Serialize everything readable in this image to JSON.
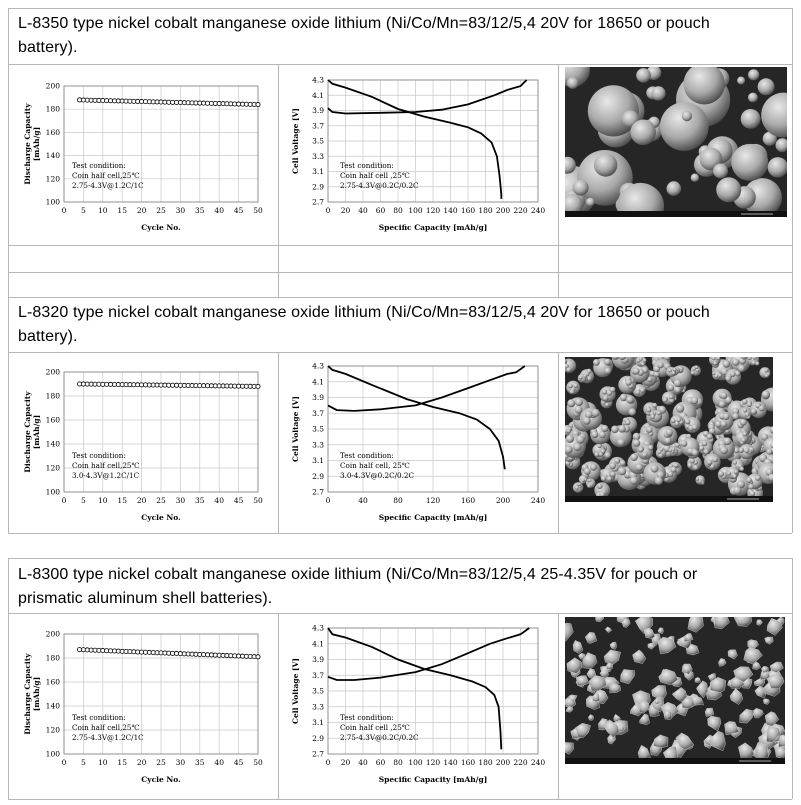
{
  "products": [
    {
      "title": "L-8350 type nickel cobalt manganese oxide lithium (Ni/Co/Mn=83/12/5,4 20V for 18650 or pouch battery).",
      "title_lines": [
        "L-8350 type nickel cobalt manganese oxide lithium (Ni/Co/Mn=83/12/5,4 20V for 18650 or pouch",
        "battery)."
      ],
      "cycle_chart": {
        "type": "scatter",
        "xlabel": "Cycle No.",
        "ylabel": "Discharge Capacity [mAh/g]",
        "xlim": [
          0,
          50
        ],
        "ylim": [
          100,
          200
        ],
        "x_ticks": [
          "0",
          "5",
          "10",
          "15",
          "20",
          "25",
          "30",
          "35",
          "40",
          "45",
          "50"
        ],
        "y_ticks": [
          "100",
          "120",
          "140",
          "160",
          "180",
          "200"
        ],
        "series": [
          {
            "x_start": 4,
            "x_end": 50,
            "y_start": 188,
            "y_end": 184
          }
        ],
        "note_lines": [
          "Test condition:",
          "Coin half cell,25℃",
          "2.75-4.3V@1.2C/1C"
        ]
      },
      "voltage_chart": {
        "type": "line",
        "xlabel": "Specific Capacity [mAh/g]",
        "ylabel": "Cell Voltage [V]",
        "xlim": [
          0,
          240
        ],
        "ylim": [
          2.7,
          4.3
        ],
        "x_ticks": [
          "0",
          "20",
          "40",
          "60",
          "80",
          "100",
          "120",
          "140",
          "160",
          "180",
          "200",
          "220",
          "240"
        ],
        "y_ticks": [
          "2.7",
          "2.9",
          "3.1",
          "3.3",
          "3.5",
          "3.7",
          "3.9",
          "4.1",
          "4.3"
        ],
        "charge": [
          [
            0,
            3.93
          ],
          [
            5,
            3.88
          ],
          [
            20,
            3.86
          ],
          [
            60,
            3.87
          ],
          [
            100,
            3.88
          ],
          [
            130,
            3.91
          ],
          [
            160,
            3.98
          ],
          [
            190,
            4.1
          ],
          [
            205,
            4.17
          ],
          [
            220,
            4.22
          ],
          [
            227,
            4.3
          ]
        ],
        "discharge": [
          [
            0,
            4.3
          ],
          [
            5,
            4.25
          ],
          [
            20,
            4.2
          ],
          [
            50,
            4.08
          ],
          [
            80,
            3.92
          ],
          [
            110,
            3.82
          ],
          [
            140,
            3.74
          ],
          [
            160,
            3.68
          ],
          [
            175,
            3.6
          ],
          [
            187,
            3.48
          ],
          [
            193,
            3.3
          ],
          [
            196,
            3.05
          ],
          [
            198,
            2.8
          ],
          [
            198,
            2.74
          ]
        ],
        "note_lines": [
          "Test condition:",
          "Coin half cell ,25℃",
          "2.75-4.3V@0.2C/0.2C"
        ]
      },
      "sem": {
        "caption": "",
        "type": "spheres"
      }
    },
    {
      "title": "L-8320 type nickel cobalt manganese oxide lithium (Ni/Co/Mn=83/12/5,4 20V for 18650 or pouch battery).",
      "title_lines": [
        "L-8320 type nickel cobalt manganese oxide lithium (Ni/Co/Mn=83/12/5,4 20V for 18650 or pouch",
        "battery)."
      ],
      "cycle_chart": {
        "type": "scatter",
        "xlabel": "Cycle No.",
        "ylabel": "Discharge Capacity [mAh/g]",
        "xlim": [
          0,
          50
        ],
        "ylim": [
          100,
          200
        ],
        "x_ticks": [
          "0",
          "5",
          "10",
          "15",
          "20",
          "25",
          "30",
          "35",
          "40",
          "45",
          "50"
        ],
        "y_ticks": [
          "100",
          "120",
          "140",
          "160",
          "180",
          "200"
        ],
        "series": [
          {
            "x_start": 4,
            "x_end": 50,
            "y_start": 190,
            "y_end": 188
          }
        ],
        "note_lines": [
          "Test condition:",
          "Coin half cell,25℃",
          "3.0-4.3V@1.2C/1C"
        ]
      },
      "voltage_chart": {
        "type": "line",
        "xlabel": "Specific Capacity [mAh/g]",
        "ylabel": "Cell Voltage [V]",
        "xlim": [
          0,
          240
        ],
        "ylim": [
          2.7,
          4.3
        ],
        "x_ticks": [
          "0",
          "40",
          "80",
          "120",
          "160",
          "200",
          "240"
        ],
        "y_ticks": [
          "2.7",
          "2.9",
          "3.1",
          "3.3",
          "3.5",
          "3.7",
          "3.9",
          "4.1",
          "4.3"
        ],
        "charge": [
          [
            0,
            3.8
          ],
          [
            10,
            3.74
          ],
          [
            30,
            3.73
          ],
          [
            60,
            3.75
          ],
          [
            100,
            3.8
          ],
          [
            130,
            3.9
          ],
          [
            160,
            4.02
          ],
          [
            185,
            4.12
          ],
          [
            205,
            4.2
          ],
          [
            215,
            4.22
          ],
          [
            225,
            4.3
          ]
        ],
        "discharge": [
          [
            0,
            4.3
          ],
          [
            5,
            4.25
          ],
          [
            20,
            4.2
          ],
          [
            50,
            4.06
          ],
          [
            90,
            3.88
          ],
          [
            120,
            3.78
          ],
          [
            150,
            3.7
          ],
          [
            170,
            3.62
          ],
          [
            185,
            3.5
          ],
          [
            195,
            3.35
          ],
          [
            200,
            3.15
          ],
          [
            202,
            2.99
          ]
        ],
        "note_lines": [
          "Test condition:",
          "Coin half cell, 25℃",
          "3.0-4.3V@0.2C/0.2C"
        ]
      },
      "sem": {
        "caption": "",
        "type": "clusters"
      }
    },
    {
      "title": "L-8300 type nickel cobalt manganese oxide lithium (Ni/Co/Mn=83/12/5,4 25-4.35V for pouch or prismatic aluminum shell batteries).",
      "title_lines": [
        "L-8300 type nickel cobalt manganese oxide lithium (Ni/Co/Mn=83/12/5,4 25-4.35V for pouch or",
        "prismatic aluminum shell batteries)."
      ],
      "cycle_chart": {
        "type": "scatter",
        "xlabel": "Cycle No.",
        "ylabel": "Discharge Capacity [mAh/g]",
        "xlim": [
          0,
          50
        ],
        "ylim": [
          100,
          200
        ],
        "x_ticks": [
          "0",
          "5",
          "10",
          "15",
          "20",
          "25",
          "30",
          "35",
          "40",
          "45",
          "50"
        ],
        "y_ticks": [
          "100",
          "120",
          "140",
          "160",
          "180",
          "200"
        ],
        "series": [
          {
            "x_start": 4,
            "x_end": 50,
            "y_start": 187,
            "y_end": 181
          }
        ],
        "note_lines": [
          "Test condition:",
          "Coin half cell,25℃",
          "2.75-4.3V@1.2C/1C"
        ]
      },
      "voltage_chart": {
        "type": "line",
        "xlabel": "Specific Capacity [mAh/g]",
        "ylabel": "Cell Voltage [V]",
        "xlim": [
          0,
          240
        ],
        "ylim": [
          2.7,
          4.3
        ],
        "x_ticks": [
          "0",
          "20",
          "40",
          "60",
          "80",
          "100",
          "120",
          "140",
          "160",
          "180",
          "200",
          "220",
          "240"
        ],
        "y_ticks": [
          "2.7",
          "2.9",
          "3.1",
          "3.3",
          "3.5",
          "3.7",
          "3.9",
          "4.1",
          "4.3"
        ],
        "charge": [
          [
            0,
            3.68
          ],
          [
            10,
            3.64
          ],
          [
            30,
            3.64
          ],
          [
            60,
            3.67
          ],
          [
            100,
            3.74
          ],
          [
            130,
            3.84
          ],
          [
            160,
            3.98
          ],
          [
            185,
            4.1
          ],
          [
            205,
            4.17
          ],
          [
            220,
            4.22
          ],
          [
            230,
            4.3
          ]
        ],
        "discharge": [
          [
            0,
            4.3
          ],
          [
            5,
            4.22
          ],
          [
            20,
            4.18
          ],
          [
            50,
            4.06
          ],
          [
            80,
            3.9
          ],
          [
            110,
            3.78
          ],
          [
            140,
            3.7
          ],
          [
            165,
            3.62
          ],
          [
            180,
            3.55
          ],
          [
            190,
            3.45
          ],
          [
            195,
            3.3
          ],
          [
            197,
            3.0
          ],
          [
            198,
            2.76
          ]
        ],
        "note_lines": [
          "Test condition:",
          "Coin half cell ,25℃",
          "2.75-4.3V@0.2C/0.2C"
        ]
      },
      "sem": {
        "caption": "",
        "type": "crystals"
      }
    }
  ]
}
